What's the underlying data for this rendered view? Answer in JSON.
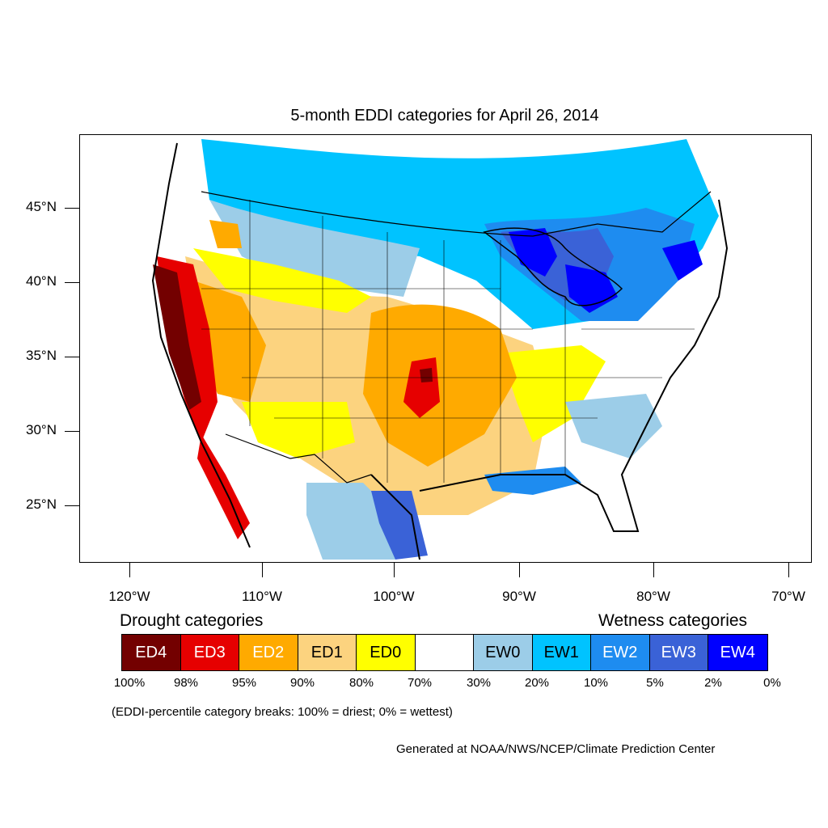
{
  "title": "5-month EDDI categories for April 26, 2014",
  "lat_labels": [
    "45°N",
    "40°N",
    "35°N",
    "30°N",
    "25°N"
  ],
  "lon_labels": [
    "120°W",
    "110°W",
    "100°W",
    "90°W",
    "80°W",
    "70°W"
  ],
  "legend": {
    "drought_heading": "Drought categories",
    "wetness_heading": "Wetness categories",
    "categories": [
      {
        "label": "ED4",
        "color": "#730000"
      },
      {
        "label": "ED3",
        "color": "#e60000"
      },
      {
        "label": "ED2",
        "color": "#ffaa00"
      },
      {
        "label": "ED1",
        "color": "#fcd37f"
      },
      {
        "label": "ED0",
        "color": "#ffff00"
      },
      {
        "label": "",
        "color": "#ffffff"
      },
      {
        "label": "EW0",
        "color": "#9ccde8"
      },
      {
        "label": "EW1",
        "color": "#00c3ff"
      },
      {
        "label": "EW2",
        "color": "#1e8cf0"
      },
      {
        "label": "EW3",
        "color": "#3a62d7"
      },
      {
        "label": "EW4",
        "color": "#0000ff"
      }
    ],
    "breaks": [
      "100%",
      "98%",
      "95%",
      "90%",
      "80%",
      "70%",
      "30%",
      "20%",
      "10%",
      "5%",
      "2%",
      "0%"
    ]
  },
  "note": "(EDDI-percentile category breaks: 100% = driest; 0% = wettest)",
  "credit": "Generated at NOAA/NWS/NCEP/Climate Prediction Center"
}
